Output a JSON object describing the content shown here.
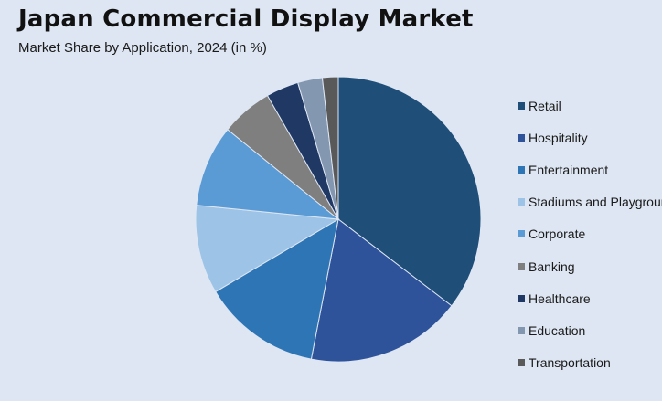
{
  "header": {
    "title": "Japan Commercial Display Market",
    "subtitle": "Market Share by Application, 2024 (in %)"
  },
  "chart_data": {
    "type": "pie",
    "title": "Japan Commercial Display Market",
    "subtitle": "Market Share by Application, 2024 (in %)",
    "legend_position": "right",
    "categories": [
      "Retail",
      "Hospitality",
      "Entertainment",
      "Stadiums and Playgrounds",
      "Corporate",
      "Banking",
      "Healthcare",
      "Education",
      "Transportation"
    ],
    "values": [
      35.5,
      17.7,
      13.5,
      10.1,
      9.3,
      5.9,
      3.7,
      2.8,
      1.8
    ],
    "colors": [
      "#1f4e79",
      "#2e539b",
      "#2e75b6",
      "#9dc3e6",
      "#5b9bd5",
      "#7f7f7f",
      "#203864",
      "#8497b0",
      "#595959"
    ]
  }
}
